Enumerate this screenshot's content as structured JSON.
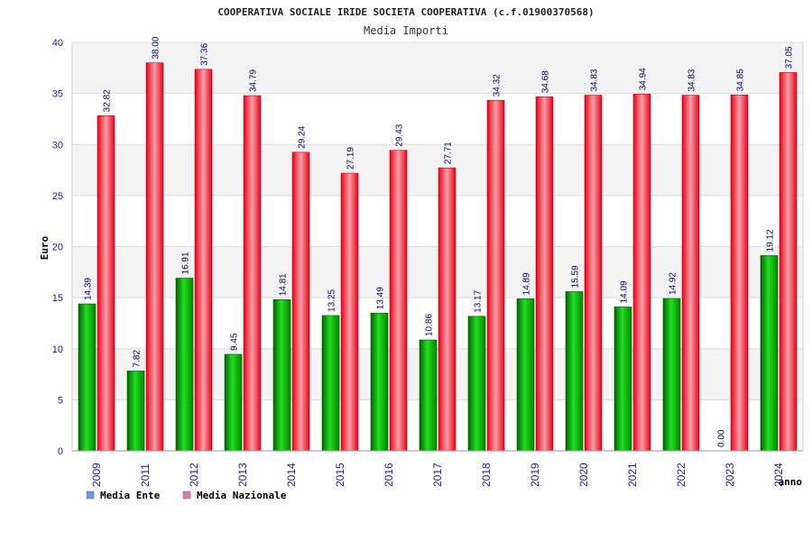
{
  "chart_data": {
    "type": "bar",
    "title": "COOPERATIVA SOCIALE IRIDE SOCIETA COOPERATIVA (c.f.01900370568)",
    "subtitle": "Media Importi",
    "xlabel": "anno",
    "ylabel": "Euro",
    "ylim": [
      0,
      40
    ],
    "yticks": [
      0,
      5,
      10,
      15,
      20,
      25,
      30,
      35,
      40
    ],
    "grid": true,
    "legend_position": "bottom-left",
    "categories": [
      "2009",
      "2011",
      "2012",
      "2013",
      "2014",
      "2015",
      "2016",
      "2017",
      "2018",
      "2019",
      "2020",
      "2021",
      "2022",
      "2023",
      "2024"
    ],
    "series": [
      {
        "name": "Media Ente",
        "color": "#00aa00",
        "legend_color": "#6699ee",
        "values": [
          14.39,
          7.82,
          16.91,
          9.45,
          14.81,
          13.25,
          13.49,
          10.86,
          13.17,
          14.89,
          15.59,
          14.09,
          14.92,
          0.0,
          19.12
        ]
      },
      {
        "name": "Media Nazionale",
        "color": "#e8202a",
        "legend_color": "#dd77aa",
        "values": [
          32.82,
          38.0,
          37.36,
          34.79,
          29.24,
          27.19,
          29.43,
          27.71,
          34.32,
          34.68,
          34.83,
          34.94,
          34.83,
          34.85,
          37.05
        ]
      }
    ]
  }
}
